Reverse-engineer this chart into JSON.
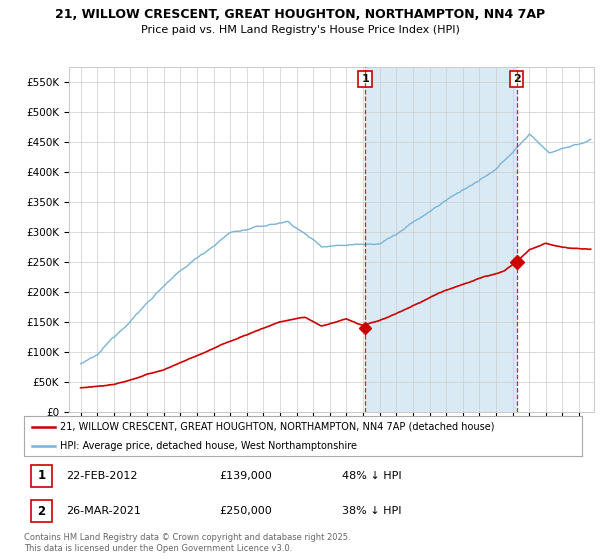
{
  "title_line1": "21, WILLOW CRESCENT, GREAT HOUGHTON, NORTHAMPTON, NN4 7AP",
  "title_line2": "Price paid vs. HM Land Registry's House Price Index (HPI)",
  "background_color": "#ffffff",
  "grid_color": "#cccccc",
  "hpi_color": "#7ab4d8",
  "price_color": "#cc0000",
  "vline_color": "#cc0000",
  "shade_color": "#daeaf5",
  "sale1_date": "22-FEB-2012",
  "sale1_price": 139000,
  "sale1_pct": "48% ↓ HPI",
  "sale2_date": "26-MAR-2021",
  "sale2_price": 250000,
  "sale2_pct": "38% ↓ HPI",
  "legend_label1": "21, WILLOW CRESCENT, GREAT HOUGHTON, NORTHAMPTON, NN4 7AP (detached house)",
  "legend_label2": "HPI: Average price, detached house, West Northamptonshire",
  "footnote": "Contains HM Land Registry data © Crown copyright and database right 2025.\nThis data is licensed under the Open Government Licence v3.0.",
  "ylim_max": 575000,
  "yticks": [
    0,
    50000,
    100000,
    150000,
    200000,
    250000,
    300000,
    350000,
    400000,
    450000,
    500000,
    550000
  ],
  "ytick_labels": [
    "£0",
    "£50K",
    "£100K",
    "£150K",
    "£200K",
    "£250K",
    "£300K",
    "£350K",
    "£400K",
    "£450K",
    "£500K",
    "£550K"
  ],
  "sale1_x": 2012.125,
  "sale1_y": 139000,
  "sale2_x": 2021.25,
  "sale2_y": 250000,
  "xlim_min": 1994.3,
  "xlim_max": 2025.9
}
